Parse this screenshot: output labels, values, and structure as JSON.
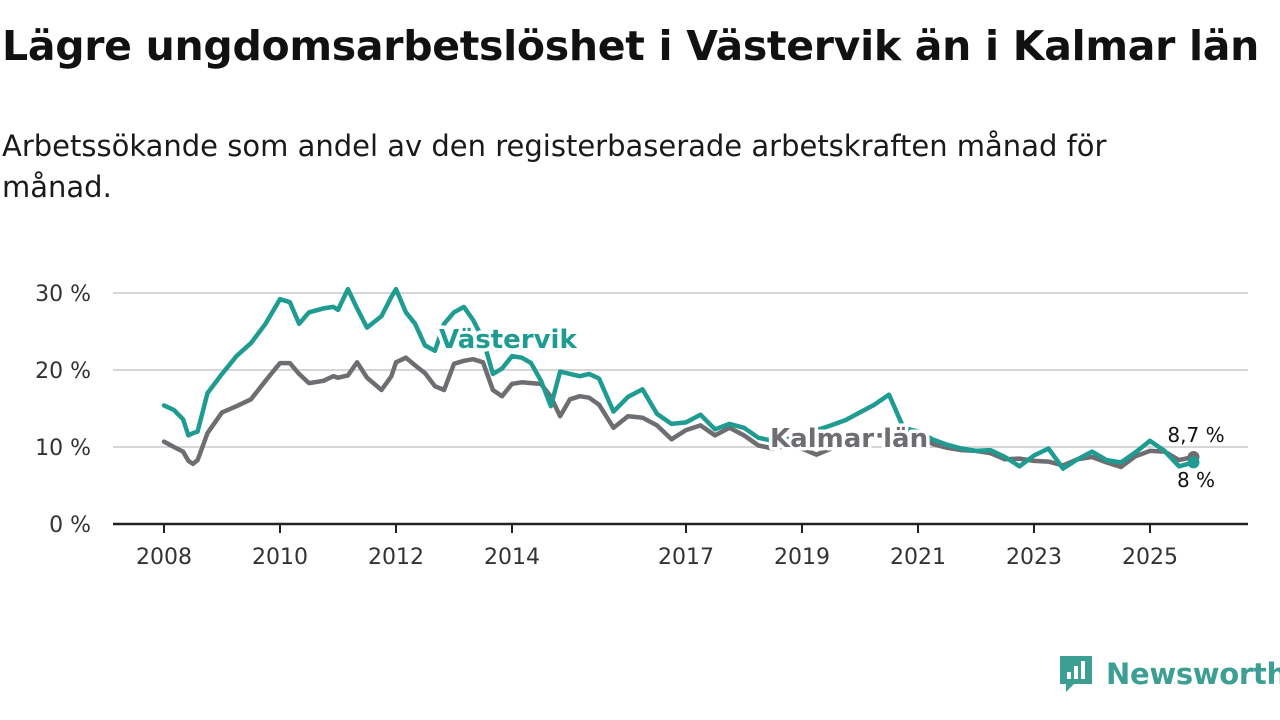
{
  "title": "Lägre ungdomsarbetslöshet i Västervik än i Kalmar län",
  "subtitle": "Arbetssökande som andel av den registerbaserade arbetskraften månad för månad.",
  "brand": {
    "name": "Newsworthy",
    "logo_icon": "newsworthy-logo-icon",
    "color": "#3d9f94"
  },
  "chart_data": {
    "type": "line",
    "title": "Lägre ungdomsarbetslöshet i Västervik än i Kalmar län",
    "xlabel": "",
    "ylabel": "",
    "xlim": [
      2008,
      2026.8
    ],
    "ylim": [
      0,
      30
    ],
    "x_ticks": [
      {
        "value": 2008,
        "label": "2008"
      },
      {
        "value": 2010,
        "label": "2010"
      },
      {
        "value": 2012,
        "label": "2012"
      },
      {
        "value": 2014,
        "label": "2014"
      },
      {
        "value": 2017,
        "label": "2017"
      },
      {
        "value": 2019,
        "label": "2019"
      },
      {
        "value": 2021,
        "label": "2021"
      },
      {
        "value": 2023,
        "label": "2023"
      },
      {
        "value": 2025,
        "label": "2025"
      }
    ],
    "y_ticks": [
      {
        "value": 0,
        "label": "0 %"
      },
      {
        "value": 10,
        "label": "10 %"
      },
      {
        "value": 20,
        "label": "20 %"
      },
      {
        "value": 30,
        "label": "30 %"
      }
    ],
    "grid": "horizontal",
    "series": [
      {
        "name": "Kalmar län",
        "label": "Kalmar län",
        "color": "#6d6d72",
        "end_label": "8,7 %",
        "x": [
          2008,
          2008.17,
          2008.33,
          2008.42,
          2008.5,
          2008.58,
          2008.75,
          2009,
          2009.25,
          2009.5,
          2009.75,
          2010,
          2010.17,
          2010.33,
          2010.5,
          2010.75,
          2010.92,
          2011,
          2011.17,
          2011.33,
          2011.5,
          2011.75,
          2011.92,
          2012,
          2012.17,
          2012.33,
          2012.5,
          2012.67,
          2012.83,
          2013,
          2013.17,
          2013.33,
          2013.5,
          2013.67,
          2013.83,
          2014,
          2014.17,
          2014.33,
          2014.5,
          2014.67,
          2014.83,
          2015,
          2015.17,
          2015.33,
          2015.5,
          2015.75,
          2016,
          2016.25,
          2016.5,
          2016.75,
          2017,
          2017.25,
          2017.5,
          2017.75,
          2018,
          2018.25,
          2018.5,
          2018.75,
          2019,
          2019.25,
          2019.5,
          2019.75,
          2020,
          2020.25,
          2020.5,
          2020.75,
          2021,
          2021.25,
          2021.5,
          2021.75,
          2022,
          2022.25,
          2022.5,
          2022.75,
          2023,
          2023.25,
          2023.5,
          2023.75,
          2024,
          2024.25,
          2024.5,
          2024.75,
          2025,
          2025.25,
          2025.5,
          2025.75
        ],
        "y": [
          10.7,
          10.0,
          9.4,
          8.2,
          7.8,
          8.3,
          11.8,
          14.5,
          15.3,
          16.2,
          18.6,
          20.9,
          20.9,
          19.5,
          18.3,
          18.6,
          19.2,
          19.0,
          19.3,
          21.0,
          19.0,
          17.4,
          19.2,
          21.0,
          21.6,
          20.6,
          19.6,
          17.9,
          17.4,
          20.8,
          21.2,
          21.4,
          21.0,
          17.4,
          16.6,
          18.2,
          18.4,
          18.3,
          18.2,
          16.5,
          14.0,
          16.2,
          16.6,
          16.4,
          15.5,
          12.5,
          14.0,
          13.8,
          12.8,
          11.0,
          12.2,
          12.8,
          11.5,
          12.5,
          11.5,
          10.2,
          9.8,
          10.2,
          9.8,
          9.0,
          9.8,
          10.5,
          11.0,
          11.5,
          11.5,
          11.8,
          11.6,
          10.4,
          9.9,
          9.6,
          9.5,
          9.2,
          8.4,
          8.5,
          8.2,
          8.1,
          7.6,
          8.4,
          8.7,
          8.0,
          7.4,
          8.8,
          9.5,
          9.4,
          8.3,
          8.7
        ]
      },
      {
        "name": "Västervik",
        "label": "Västervik",
        "color": "#1f9c92",
        "end_label": "8 %",
        "x": [
          2008,
          2008.17,
          2008.33,
          2008.42,
          2008.5,
          2008.58,
          2008.75,
          2009,
          2009.25,
          2009.5,
          2009.75,
          2010,
          2010.17,
          2010.33,
          2010.5,
          2010.75,
          2010.92,
          2011,
          2011.17,
          2011.33,
          2011.5,
          2011.75,
          2011.92,
          2012,
          2012.17,
          2012.33,
          2012.5,
          2012.67,
          2012.83,
          2013,
          2013.17,
          2013.33,
          2013.5,
          2013.67,
          2013.83,
          2014,
          2014.17,
          2014.33,
          2014.5,
          2014.67,
          2014.83,
          2015,
          2015.17,
          2015.33,
          2015.5,
          2015.75,
          2016,
          2016.25,
          2016.5,
          2016.75,
          2017,
          2017.25,
          2017.5,
          2017.75,
          2018,
          2018.25,
          2018.5,
          2018.75,
          2019,
          2019.25,
          2019.5,
          2019.75,
          2020,
          2020.25,
          2020.5,
          2020.75,
          2021,
          2021.25,
          2021.5,
          2021.75,
          2022,
          2022.25,
          2022.5,
          2022.75,
          2023,
          2023.25,
          2023.5,
          2023.75,
          2024,
          2024.25,
          2024.5,
          2024.75,
          2025,
          2025.25,
          2025.5,
          2025.75
        ],
        "y": [
          15.4,
          14.8,
          13.6,
          11.5,
          11.8,
          12.0,
          17.0,
          19.5,
          21.8,
          23.5,
          26.0,
          29.2,
          28.8,
          26.0,
          27.5,
          28.0,
          28.2,
          27.8,
          30.5,
          28.0,
          25.5,
          27.0,
          29.5,
          30.5,
          27.5,
          26.0,
          23.2,
          22.5,
          26.0,
          27.5,
          28.2,
          26.5,
          24.0,
          19.5,
          20.2,
          21.8,
          21.6,
          20.9,
          18.6,
          15.3,
          19.8,
          19.5,
          19.2,
          19.5,
          18.9,
          14.6,
          16.5,
          17.5,
          14.3,
          13.0,
          13.2,
          14.2,
          12.3,
          13.0,
          12.5,
          11.2,
          10.8,
          11.0,
          11.5,
          12.2,
          12.8,
          13.5,
          14.5,
          15.5,
          16.8,
          12.5,
          12.0,
          11.0,
          10.3,
          9.8,
          9.5,
          9.6,
          8.7,
          7.5,
          8.9,
          9.8,
          7.2,
          8.4,
          9.4,
          8.3,
          8.0,
          9.3,
          10.8,
          9.5,
          7.5,
          8.0
        ]
      }
    ]
  }
}
